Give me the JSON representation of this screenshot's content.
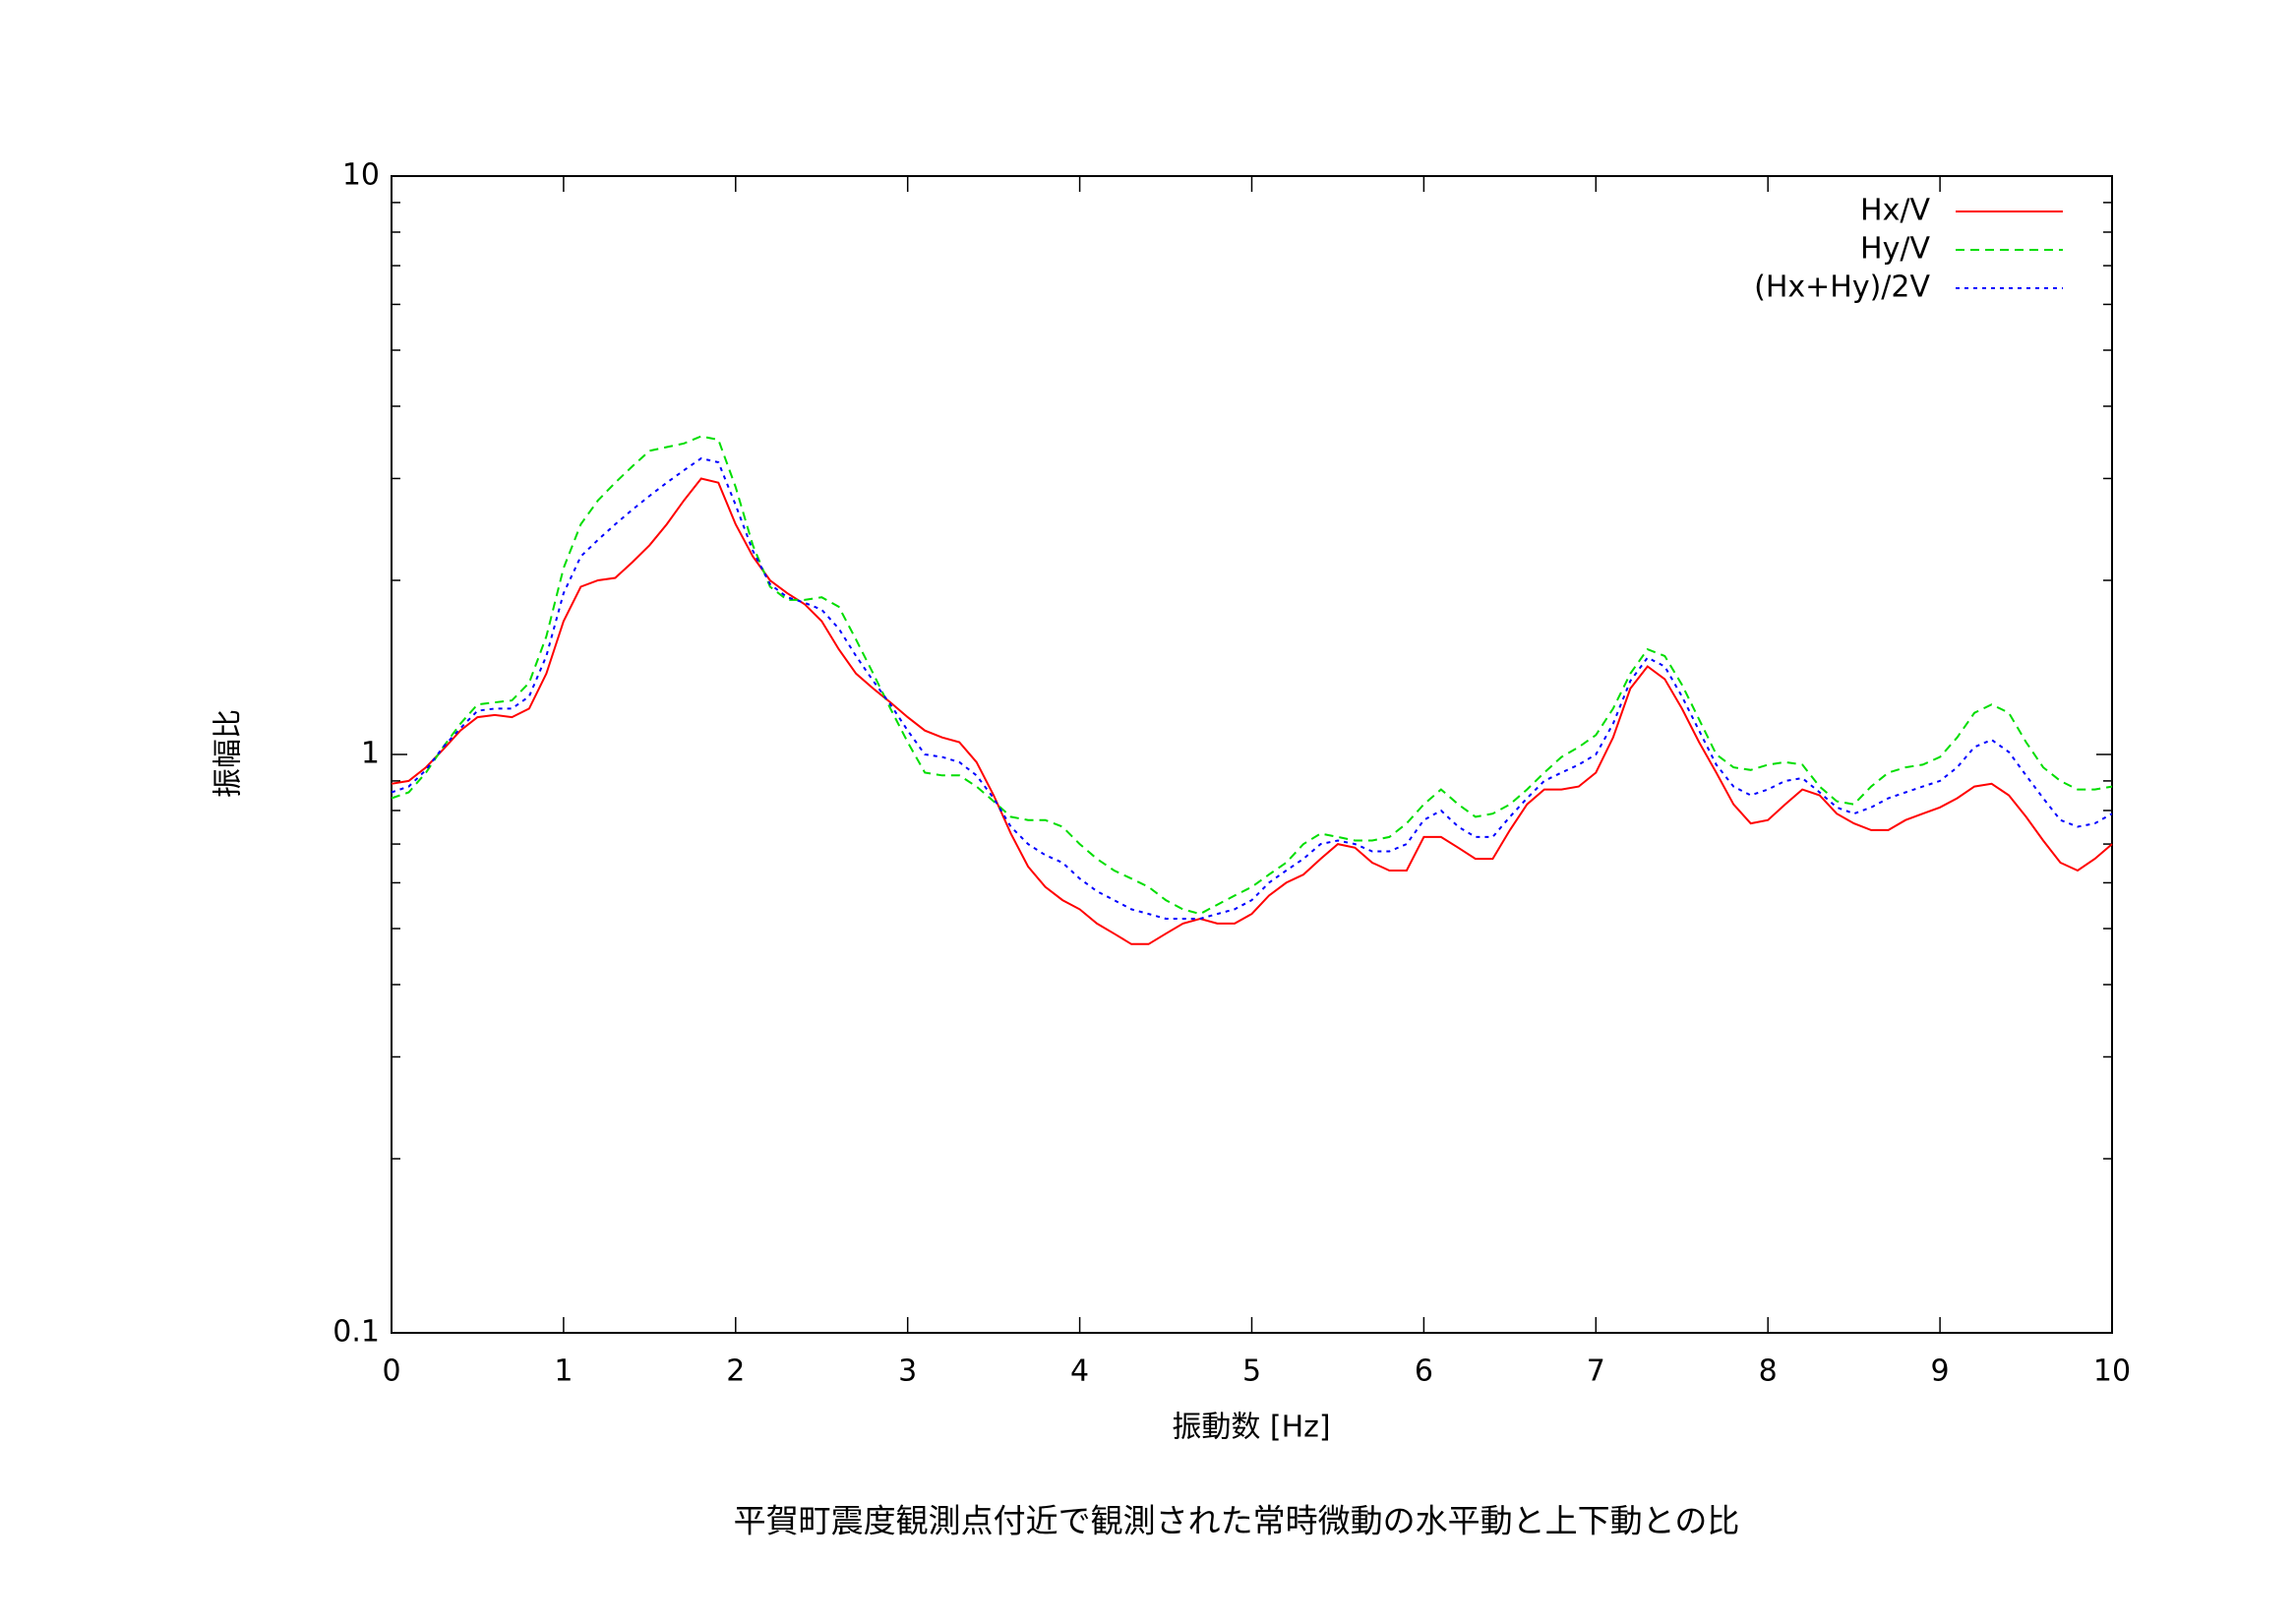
{
  "chart_data": {
    "type": "line",
    "title": "平賀町震度観測点付近で観測された常時微動の水平動と上下動との比",
    "xlabel": "振動数 [Hz]",
    "ylabel": "振幅比",
    "x": [
      0,
      0.1,
      0.2,
      0.3,
      0.4,
      0.5,
      0.6,
      0.7,
      0.8,
      0.9,
      1,
      1.1,
      1.2,
      1.3,
      1.4,
      1.5,
      1.6,
      1.7,
      1.8,
      1.9,
      2,
      2.1,
      2.2,
      2.3,
      2.4,
      2.5,
      2.6,
      2.7,
      2.8,
      2.9,
      3,
      3.1,
      3.2,
      3.3,
      3.4,
      3.5,
      3.6,
      3.7,
      3.8,
      3.9,
      4,
      4.1,
      4.2,
      4.3,
      4.4,
      4.5,
      4.6,
      4.7,
      4.8,
      4.9,
      5,
      5.1,
      5.2,
      5.3,
      5.4,
      5.5,
      5.6,
      5.7,
      5.8,
      5.9,
      6,
      6.1,
      6.2,
      6.3,
      6.4,
      6.5,
      6.6,
      6.7,
      6.8,
      6.9,
      7,
      7.1,
      7.2,
      7.3,
      7.4,
      7.5,
      7.6,
      7.7,
      7.8,
      7.9,
      8,
      8.1,
      8.2,
      8.3,
      8.4,
      8.5,
      8.6,
      8.7,
      8.8,
      8.9,
      9,
      9.1,
      9.2,
      9.3,
      9.4,
      9.5,
      9.6,
      9.7,
      9.8,
      9.9,
      10
    ],
    "series": [
      {
        "name": "Hx/V",
        "color": "#ff0000",
        "dash": "none",
        "values": [
          0.89,
          0.9,
          0.95,
          1.02,
          1.1,
          1.16,
          1.17,
          1.16,
          1.2,
          1.38,
          1.7,
          1.95,
          2.0,
          2.02,
          2.15,
          2.3,
          2.5,
          2.75,
          3.0,
          2.95,
          2.5,
          2.2,
          2.0,
          1.9,
          1.82,
          1.7,
          1.52,
          1.38,
          1.3,
          1.23,
          1.16,
          1.1,
          1.07,
          1.05,
          0.97,
          0.85,
          0.73,
          0.64,
          0.59,
          0.56,
          0.54,
          0.51,
          0.49,
          0.47,
          0.47,
          0.49,
          0.51,
          0.52,
          0.51,
          0.51,
          0.53,
          0.57,
          0.6,
          0.62,
          0.66,
          0.7,
          0.69,
          0.65,
          0.63,
          0.63,
          0.72,
          0.72,
          0.69,
          0.66,
          0.66,
          0.74,
          0.82,
          0.87,
          0.87,
          0.88,
          0.93,
          1.07,
          1.3,
          1.42,
          1.35,
          1.2,
          1.05,
          0.93,
          0.82,
          0.76,
          0.77,
          0.82,
          0.87,
          0.85,
          0.79,
          0.76,
          0.74,
          0.74,
          0.77,
          0.79,
          0.81,
          0.84,
          0.88,
          0.89,
          0.85,
          0.78,
          0.71,
          0.65,
          0.63,
          0.66,
          0.7
        ]
      },
      {
        "name": "Hy/V",
        "color": "#00dd00",
        "dash": "9,6",
        "values": [
          0.84,
          0.86,
          0.93,
          1.03,
          1.13,
          1.22,
          1.23,
          1.24,
          1.33,
          1.6,
          2.1,
          2.5,
          2.75,
          2.95,
          3.15,
          3.35,
          3.4,
          3.45,
          3.55,
          3.5,
          2.9,
          2.3,
          1.95,
          1.85,
          1.85,
          1.87,
          1.8,
          1.58,
          1.38,
          1.2,
          1.05,
          0.93,
          0.92,
          0.92,
          0.88,
          0.83,
          0.78,
          0.77,
          0.77,
          0.75,
          0.7,
          0.66,
          0.63,
          0.61,
          0.59,
          0.56,
          0.54,
          0.53,
          0.55,
          0.57,
          0.59,
          0.62,
          0.65,
          0.7,
          0.73,
          0.72,
          0.71,
          0.71,
          0.72,
          0.76,
          0.82,
          0.87,
          0.82,
          0.78,
          0.79,
          0.82,
          0.87,
          0.93,
          0.99,
          1.03,
          1.08,
          1.2,
          1.38,
          1.52,
          1.48,
          1.32,
          1.15,
          1.0,
          0.95,
          0.94,
          0.96,
          0.97,
          0.96,
          0.88,
          0.83,
          0.82,
          0.88,
          0.93,
          0.95,
          0.96,
          0.99,
          1.07,
          1.18,
          1.22,
          1.18,
          1.05,
          0.95,
          0.9,
          0.87,
          0.87,
          0.88
        ]
      },
      {
        "name": "(Hx+Hy)/2V",
        "color": "#0000ff",
        "dash": "4,5",
        "values": [
          0.86,
          0.88,
          0.94,
          1.03,
          1.11,
          1.19,
          1.2,
          1.2,
          1.26,
          1.48,
          1.9,
          2.2,
          2.35,
          2.5,
          2.65,
          2.8,
          2.95,
          3.1,
          3.25,
          3.2,
          2.7,
          2.25,
          1.97,
          1.87,
          1.83,
          1.78,
          1.65,
          1.48,
          1.34,
          1.22,
          1.1,
          1.0,
          0.99,
          0.97,
          0.92,
          0.84,
          0.75,
          0.7,
          0.67,
          0.65,
          0.61,
          0.58,
          0.56,
          0.54,
          0.53,
          0.52,
          0.52,
          0.52,
          0.53,
          0.54,
          0.56,
          0.6,
          0.63,
          0.66,
          0.7,
          0.71,
          0.7,
          0.68,
          0.68,
          0.7,
          0.77,
          0.8,
          0.75,
          0.72,
          0.72,
          0.78,
          0.84,
          0.9,
          0.93,
          0.96,
          1.0,
          1.13,
          1.34,
          1.47,
          1.42,
          1.26,
          1.1,
          0.96,
          0.88,
          0.85,
          0.87,
          0.9,
          0.91,
          0.86,
          0.81,
          0.79,
          0.81,
          0.84,
          0.86,
          0.88,
          0.9,
          0.95,
          1.03,
          1.06,
          1.01,
          0.92,
          0.84,
          0.77,
          0.75,
          0.76,
          0.79
        ]
      }
    ],
    "xlim": [
      0,
      10
    ],
    "xticks": [
      0,
      1,
      2,
      3,
      4,
      5,
      6,
      7,
      8,
      9,
      10
    ],
    "ylim": [
      0.1,
      10
    ],
    "yticks": [
      0.1,
      1,
      10
    ],
    "yminor": [
      0.2,
      0.3,
      0.4,
      0.5,
      0.6,
      0.7,
      0.8,
      0.9,
      2,
      3,
      4,
      5,
      6,
      7,
      8,
      9
    ],
    "log_y": true,
    "legend": "top-right"
  }
}
